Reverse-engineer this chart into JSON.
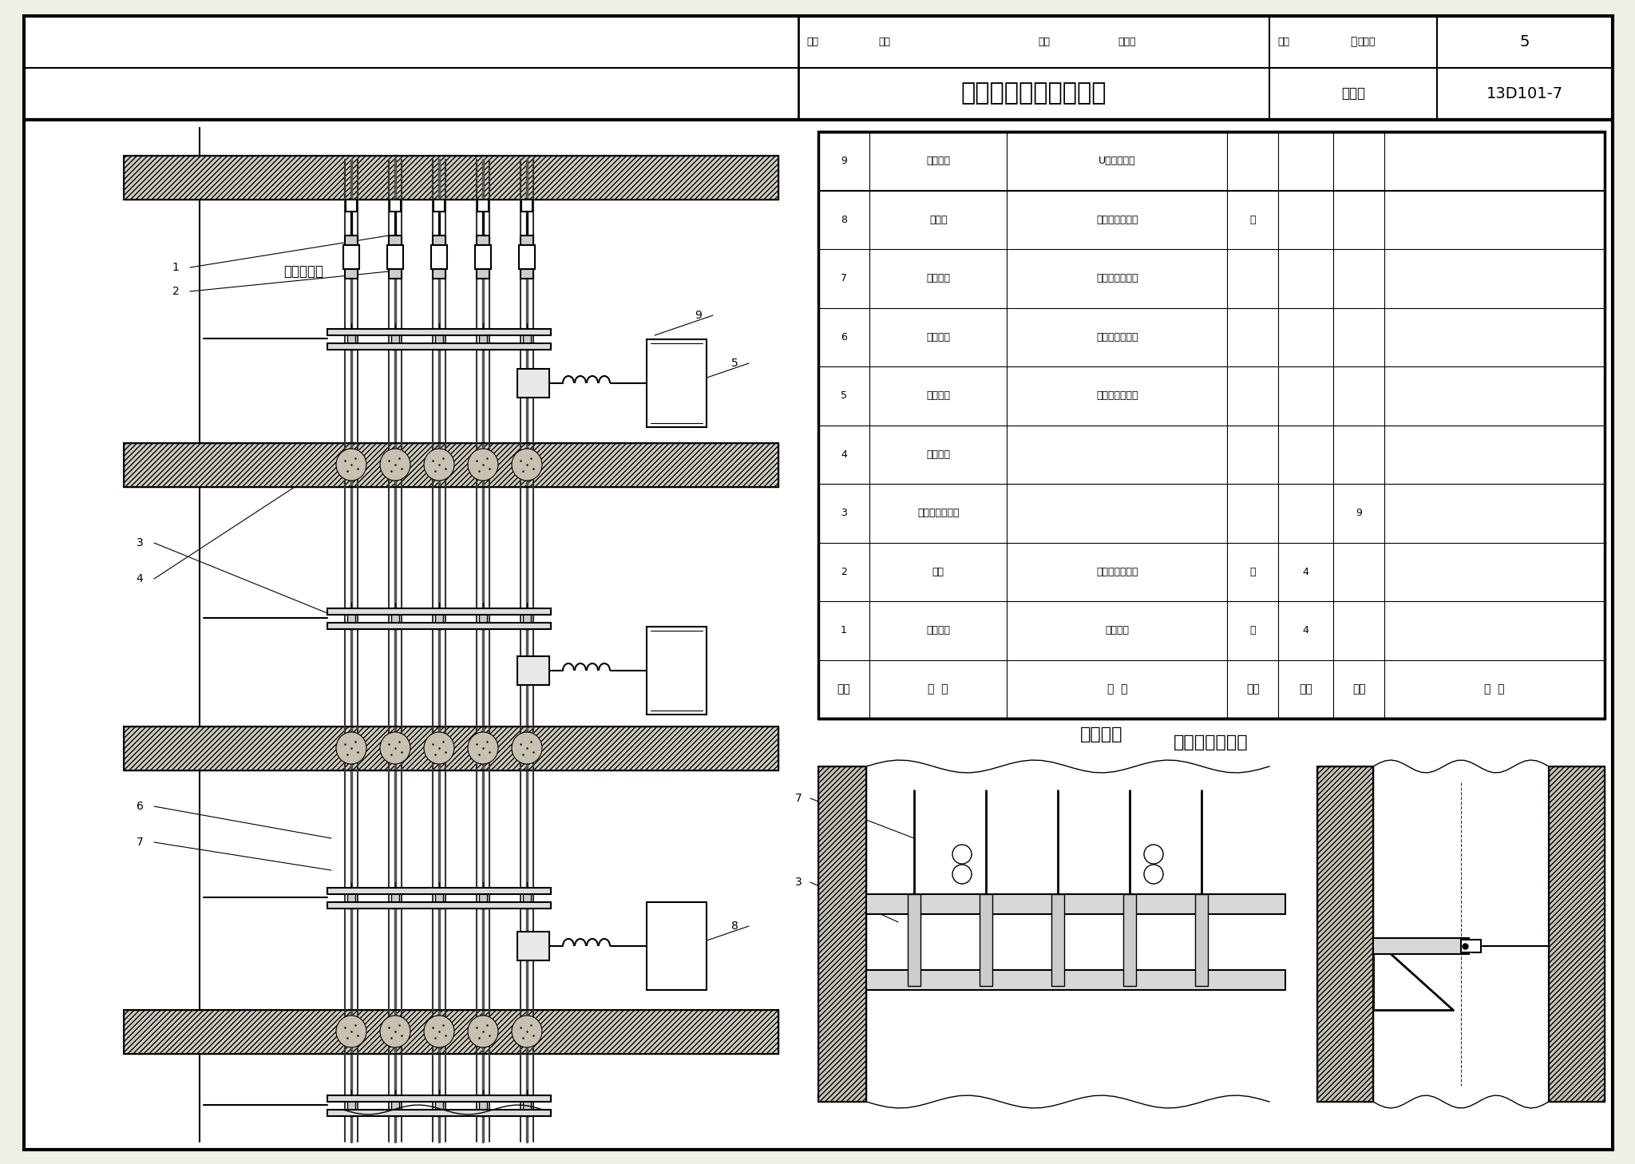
{
  "title_main": "预制分支电力电缆安装",
  "title_sub": "支架安装",
  "materials_title": "主要设备材料表",
  "figure_number": "13D101-7",
  "page": "5",
  "label_elec_room": "电气竖井间",
  "col_headers": [
    "序号",
    "名  称",
    "型  号",
    "单位",
    "数量",
    "页次",
    "备  注"
  ],
  "table_rows": [
    [
      "1",
      "预埋吊钩",
      "土建预埋",
      "个",
      "4",
      "",
      ""
    ],
    [
      "2",
      "吊具",
      "与主干电缆配套",
      "个",
      "4",
      "",
      ""
    ],
    [
      "3",
      "电缆支架及夹板",
      "",
      "",
      "",
      "9",
      ""
    ],
    [
      "4",
      "防火封堵",
      "",
      "",
      "",
      "",
      ""
    ],
    [
      "5",
      "分支电缆",
      "由工程设计确定",
      "",
      "",
      "",
      ""
    ],
    [
      "6",
      "分支接头",
      "由工程设计确定",
      "",
      "",
      "",
      ""
    ],
    [
      "7",
      "主干电缆",
      "由工程设计确定",
      "",
      "",
      "",
      ""
    ],
    [
      "8",
      "配电箱",
      "由工程设计确定",
      "台",
      "",
      "",
      ""
    ],
    [
      "9",
      "电缆夹子",
      "U形槽钢夹子",
      "",
      "",
      "",
      ""
    ]
  ],
  "bg_color": "#f0f0e8",
  "paper_color": "#ffffff"
}
